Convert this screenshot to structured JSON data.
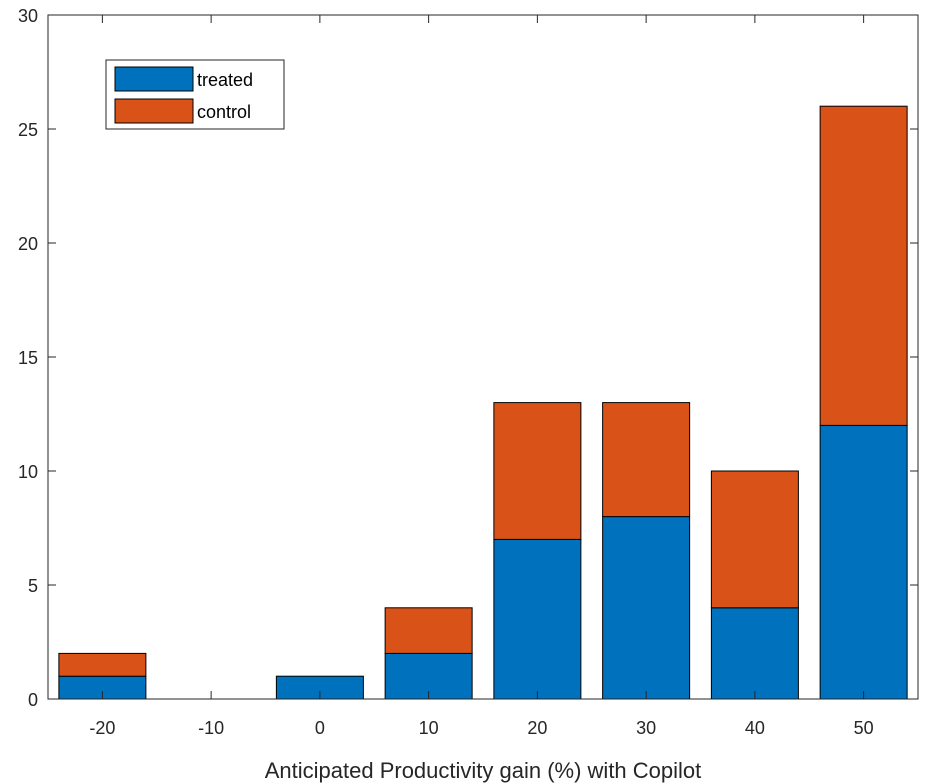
{
  "chart_data": {
    "type": "bar",
    "stacked": true,
    "categories": [
      "-20",
      "-10",
      "0",
      "10",
      "20",
      "30",
      "40",
      "50"
    ],
    "series": [
      {
        "name": "treated",
        "values": [
          1,
          0,
          1,
          2,
          7,
          8,
          4,
          12
        ],
        "color": "#0072BD"
      },
      {
        "name": "control",
        "values": [
          1,
          0,
          0,
          2,
          6,
          5,
          6,
          14
        ],
        "color": "#D95319"
      }
    ],
    "xlabel": "Anticipated Productivity gain (%) with Copilot",
    "ylabel": "",
    "ylim": [
      0,
      30
    ],
    "yticks": [
      0,
      5,
      10,
      15,
      20,
      25,
      30
    ],
    "grid": false,
    "legend_position": "top-left"
  }
}
